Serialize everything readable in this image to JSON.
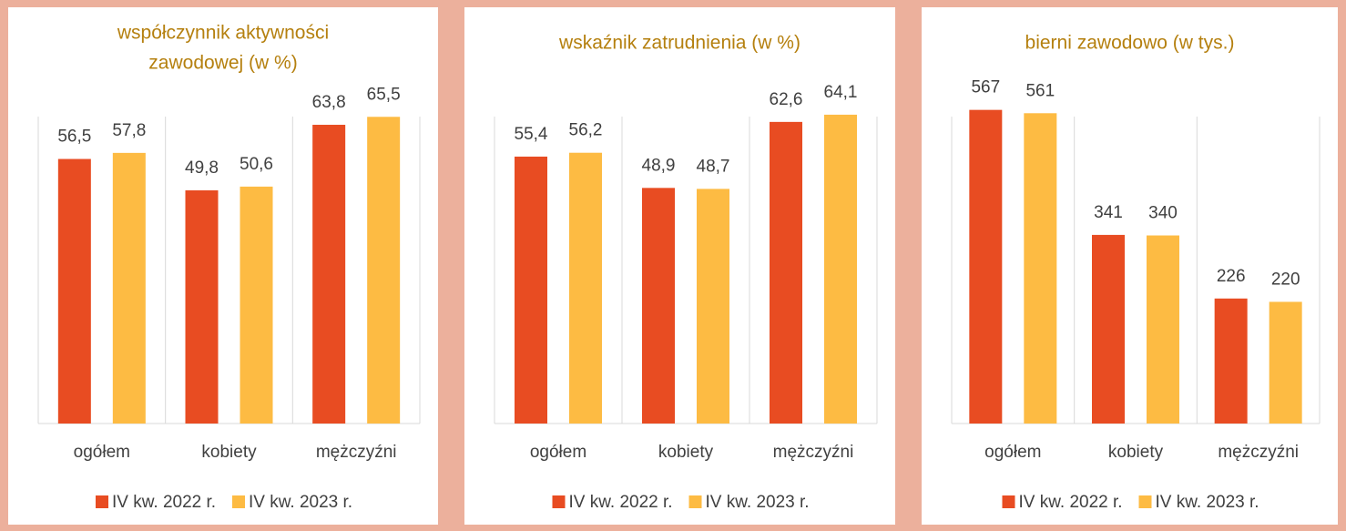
{
  "chart_data": [
    {
      "type": "bar",
      "title": [
        "współczynnik aktywności",
        "zawodowej (w %)"
      ],
      "categories": [
        "ogółem",
        "kobiety",
        "mężczyźni"
      ],
      "series": [
        {
          "name": "IV kw. 2022 r.",
          "color": "#e84c22",
          "values": [
            56.5,
            49.8,
            63.8
          ],
          "value_labels": [
            "56,5",
            "49,8",
            "63,8"
          ]
        },
        {
          "name": "IV kw. 2023 r.",
          "color": "#fdbb43",
          "values": [
            57.8,
            50.6,
            65.5
          ],
          "value_labels": [
            "57,8",
            "50,6",
            "65,5"
          ]
        }
      ],
      "ylim": [
        0,
        71
      ]
    },
    {
      "type": "bar",
      "title": [
        "wskaźnik zatrudnienia (w %)"
      ],
      "categories": [
        "ogółem",
        "kobiety",
        "mężczyźni"
      ],
      "series": [
        {
          "name": "IV kw. 2022 r.",
          "color": "#e84c22",
          "values": [
            55.4,
            48.9,
            62.6
          ],
          "value_labels": [
            "55,4",
            "48,9",
            "62,6"
          ]
        },
        {
          "name": "IV kw. 2023 r.",
          "color": "#fdbb43",
          "values": [
            56.2,
            48.7,
            64.1
          ],
          "value_labels": [
            "56,2",
            "48,7",
            "64,1"
          ]
        }
      ],
      "ylim": [
        0,
        69
      ]
    },
    {
      "type": "bar",
      "title": [
        "bierni zawodowo (w tys.)"
      ],
      "categories": [
        "ogółem",
        "kobiety",
        "mężczyźni"
      ],
      "series": [
        {
          "name": "IV kw. 2022 r.",
          "color": "#e84c22",
          "values": [
            567,
            341,
            226
          ]
        },
        {
          "name": "IV kw. 2023 r.",
          "color": "#fdbb43",
          "values": [
            561,
            340,
            220
          ]
        }
      ],
      "ylim": [
        0,
        601
      ]
    }
  ]
}
